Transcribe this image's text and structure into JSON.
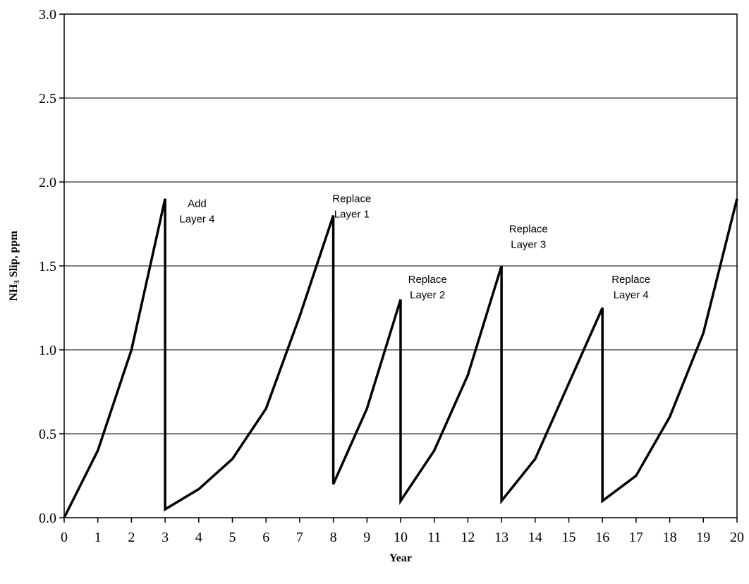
{
  "chart_data": {
    "type": "line",
    "title": "",
    "xlabel": "Year",
    "ylabel_main": "NH",
    "ylabel_sub": "3",
    "ylabel_rest": " Slip, ppm",
    "xlim": [
      0,
      20
    ],
    "ylim": [
      0,
      3.0
    ],
    "x_ticks": [
      "0",
      "1",
      "2",
      "3",
      "4",
      "5",
      "6",
      "7",
      "8",
      "9",
      "10",
      "11",
      "12",
      "13",
      "14",
      "15",
      "16",
      "17",
      "18",
      "19",
      "20"
    ],
    "y_ticks": [
      "0.0",
      "0.5",
      "1.0",
      "1.5",
      "2.0",
      "2.5",
      "3.0"
    ],
    "grid": "horizontal",
    "series": [
      {
        "points": [
          [
            0,
            0.0
          ],
          [
            1,
            0.4
          ],
          [
            2,
            1.0
          ],
          [
            3,
            1.9
          ],
          [
            3,
            0.05
          ],
          [
            4,
            0.17
          ],
          [
            5,
            0.35
          ],
          [
            6,
            0.65
          ],
          [
            7,
            1.2
          ],
          [
            8,
            1.8
          ],
          [
            8,
            0.2
          ],
          [
            9,
            0.65
          ],
          [
            10,
            1.3
          ],
          [
            10,
            0.1
          ],
          [
            11,
            0.4
          ],
          [
            12,
            0.85
          ],
          [
            13,
            1.5
          ],
          [
            13,
            0.1
          ],
          [
            14,
            0.35
          ],
          [
            15,
            0.8
          ],
          [
            16,
            1.25
          ],
          [
            16,
            0.1
          ],
          [
            17,
            0.25
          ],
          [
            18,
            0.6
          ],
          [
            19,
            1.1
          ],
          [
            20,
            1.9
          ]
        ]
      }
    ],
    "annotations": [
      {
        "lines": [
          "Add",
          "Layer 4"
        ],
        "x": 3.95,
        "y": 1.85
      },
      {
        "lines": [
          "Replace",
          "Layer 1"
        ],
        "x": 8.55,
        "y": 1.88
      },
      {
        "lines": [
          "Replace",
          "Layer 2"
        ],
        "x": 10.8,
        "y": 1.4
      },
      {
        "lines": [
          "Replace",
          "Layer 3"
        ],
        "x": 13.8,
        "y": 1.7
      },
      {
        "lines": [
          "Replace",
          "Layer 4"
        ],
        "x": 16.85,
        "y": 1.4
      }
    ]
  }
}
